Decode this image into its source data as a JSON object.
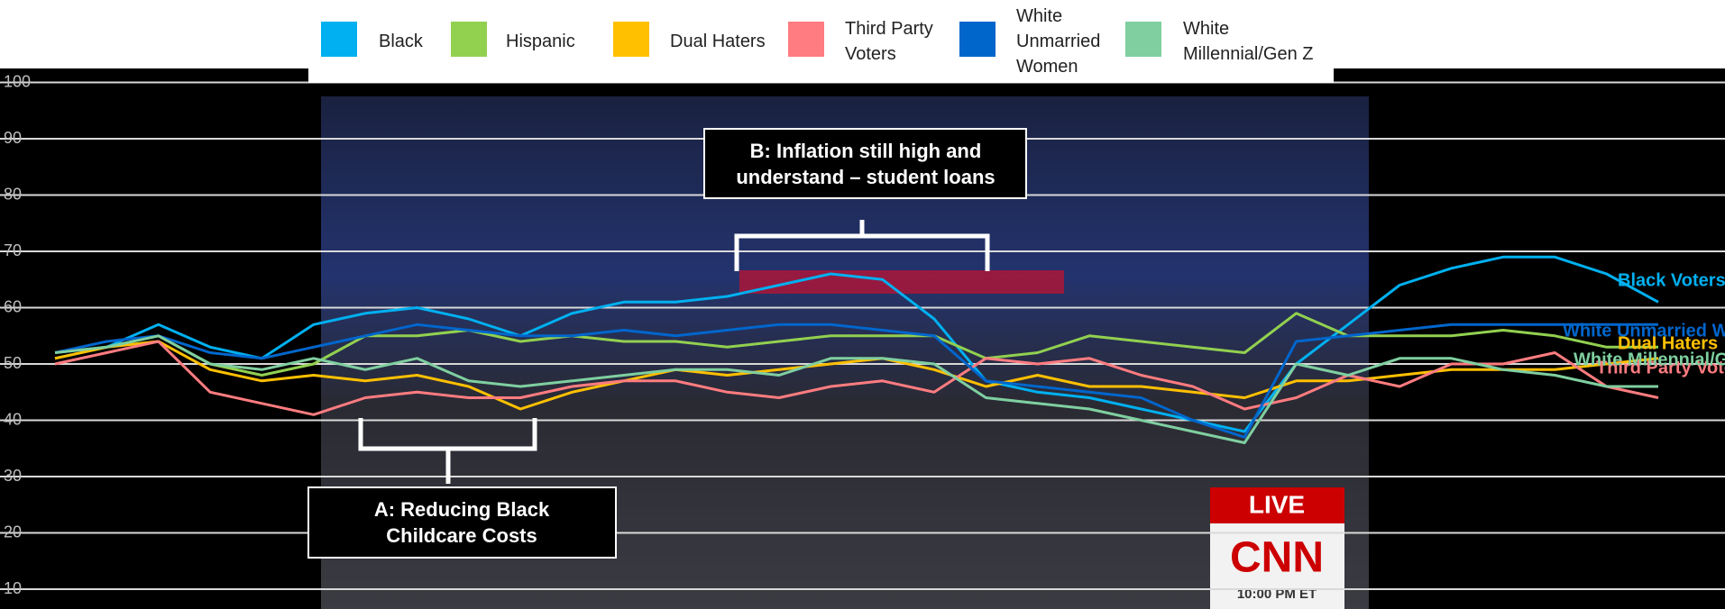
{
  "chart_data": {
    "type": "line",
    "ylim": [
      10,
      100
    ],
    "yticks": [
      10,
      20,
      30,
      40,
      50,
      60,
      70,
      80,
      90,
      100
    ],
    "grid": true,
    "series": [
      {
        "name": "Black",
        "color": "#00b0f0",
        "end_label": "Black Voters",
        "values": [
          52,
          53,
          57,
          53,
          51,
          57,
          59,
          60,
          58,
          55,
          59,
          61,
          61,
          62,
          64,
          66,
          65,
          58,
          47,
          45,
          44,
          42,
          40,
          38,
          50,
          57,
          64,
          67,
          69,
          69,
          66,
          61
        ]
      },
      {
        "name": "Hispanic",
        "color": "#92d050",
        "values": [
          51,
          53,
          55,
          50,
          48,
          50,
          55,
          55,
          56,
          54,
          55,
          54,
          54,
          53,
          54,
          55,
          55,
          55,
          51,
          52,
          55,
          54,
          53,
          52,
          59,
          55,
          55,
          55,
          56,
          55,
          53,
          53
        ]
      },
      {
        "name": "Dual Haters",
        "color": "#ffc000",
        "end_label": "Dual Haters",
        "values": [
          51,
          53,
          54,
          49,
          47,
          48,
          47,
          48,
          46,
          42,
          45,
          47,
          49,
          48,
          49,
          50,
          51,
          49,
          46,
          48,
          46,
          46,
          45,
          44,
          47,
          47,
          48,
          49,
          49,
          49,
          50,
          51
        ]
      },
      {
        "name": "Third Party Voters",
        "color": "#ff7c80",
        "end_label": "Third Party Vote",
        "values": [
          50,
          52,
          54,
          45,
          43,
          41,
          44,
          45,
          44,
          44,
          46,
          47,
          47,
          45,
          44,
          46,
          47,
          45,
          51,
          50,
          51,
          48,
          46,
          42,
          44,
          48,
          46,
          50,
          50,
          52,
          46,
          44
        ]
      },
      {
        "name": "White Unmarried Women",
        "color": "#0066cc",
        "end_label": "White Unmarried W",
        "values": [
          52,
          54,
          55,
          52,
          51,
          53,
          55,
          57,
          56,
          55,
          55,
          56,
          55,
          56,
          57,
          57,
          56,
          55,
          47,
          46,
          45,
          44,
          40,
          37,
          54,
          55,
          56,
          57,
          57,
          57,
          57,
          57
        ]
      },
      {
        "name": "White Millennial/Gen Z",
        "color": "#7fcfa0",
        "end_label": "White Millennial/G",
        "values": [
          52,
          53,
          55,
          50,
          49,
          51,
          49,
          51,
          47,
          46,
          47,
          48,
          49,
          49,
          48,
          51,
          51,
          50,
          44,
          43,
          42,
          40,
          38,
          36,
          50,
          48,
          51,
          51,
          49,
          48,
          46,
          46
        ]
      }
    ],
    "annotations": [
      {
        "text": [
          "B: Inflation still high and",
          "understand – student loans"
        ]
      },
      {
        "text": [
          "A: Reducing Black",
          "Childcare Costs"
        ]
      }
    ],
    "video_overlay": {
      "live": "LIVE",
      "logo": "CNN",
      "time": "10:00 PM ET"
    }
  }
}
